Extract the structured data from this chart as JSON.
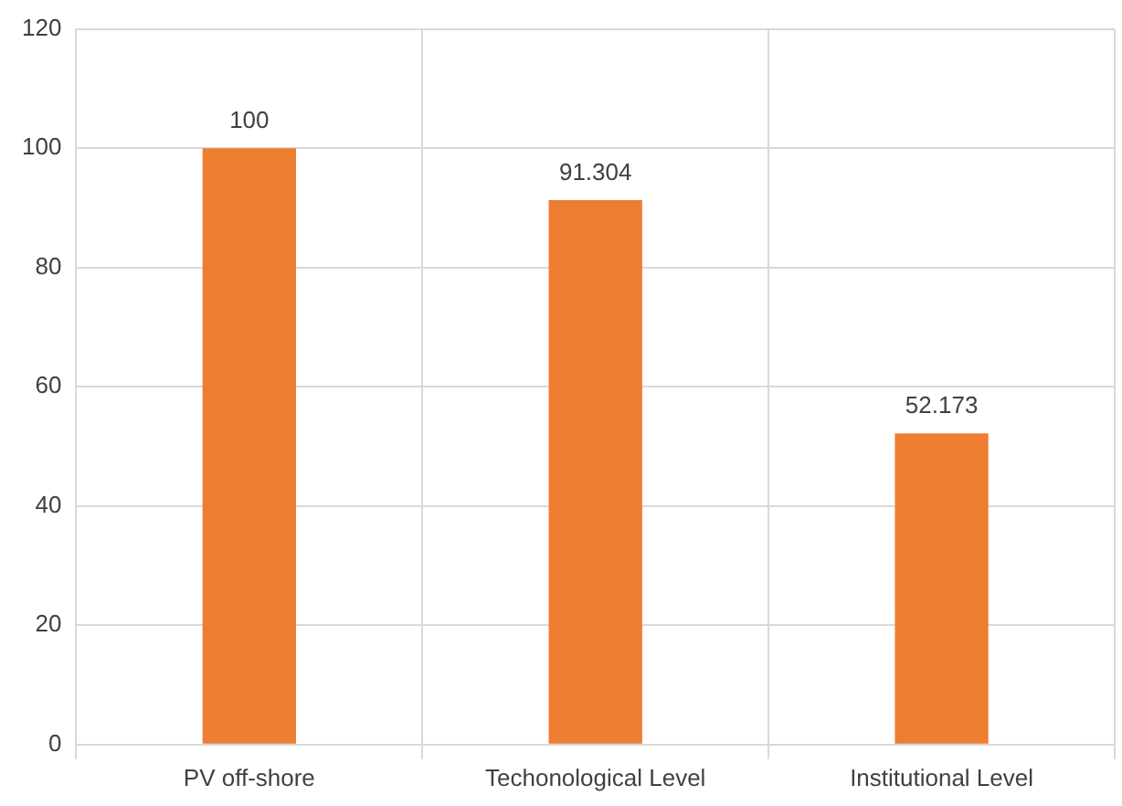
{
  "chart_data": {
    "type": "bar",
    "categories": [
      "PV off-shore",
      "Techonological Level",
      "Institutional Level"
    ],
    "values": [
      100,
      91.304,
      52.173
    ],
    "color": "#ed7d31",
    "ylim": [
      0,
      120
    ],
    "yticks": [
      0,
      20,
      40,
      60,
      80,
      100,
      120
    ],
    "grid": true,
    "data_labels": true
  }
}
